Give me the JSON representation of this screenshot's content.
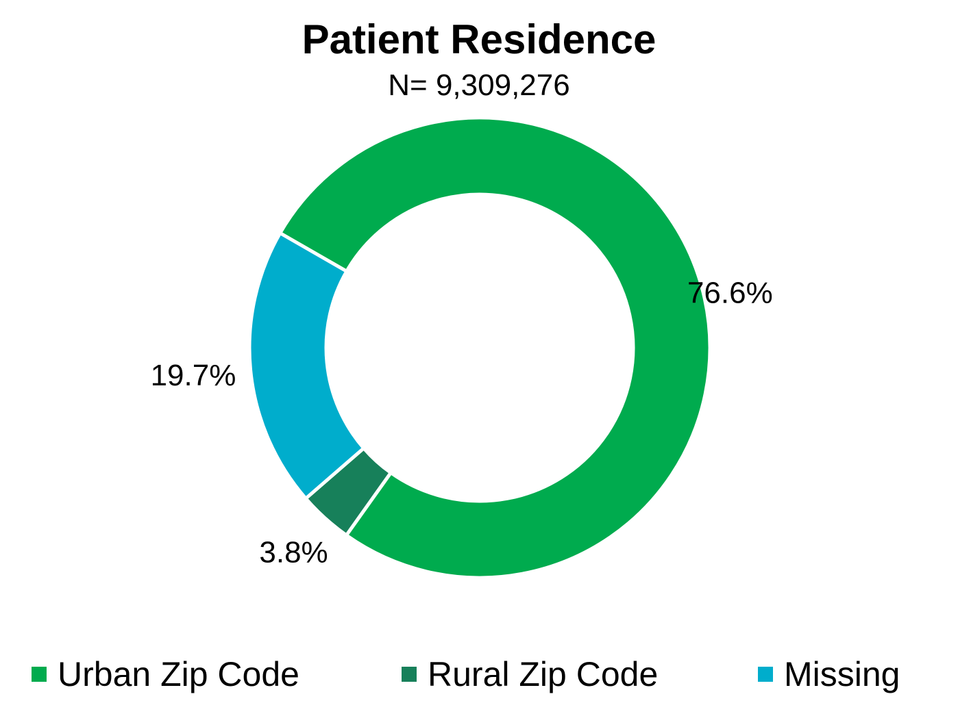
{
  "chart_data": {
    "type": "pie",
    "title": "Patient Residence",
    "subtitle": "N= 9,309,276",
    "categories": [
      "Urban Zip Code",
      "Rural Zip Code",
      "Missing"
    ],
    "values": [
      76.6,
      3.8,
      19.7
    ],
    "value_labels": [
      "76.6%",
      "3.8%",
      "19.7%"
    ],
    "colors": [
      "#00ab4e",
      "#17805a",
      "#00adcc"
    ],
    "legend_position": "bottom"
  }
}
